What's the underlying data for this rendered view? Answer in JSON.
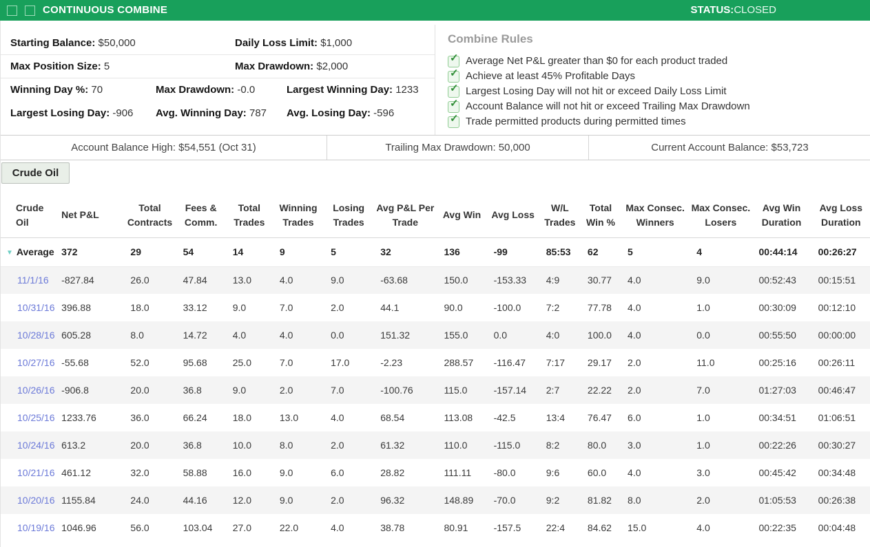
{
  "header": {
    "title": "CONTINUOUS COMBINE",
    "status_label": "STATUS:",
    "status_value": "CLOSED",
    "accent_green": "#18a05b"
  },
  "stats": {
    "row1": [
      {
        "label": "Starting Balance:",
        "value": "$50,000"
      },
      {
        "label": "Daily Loss Limit:",
        "value": "$1,000"
      }
    ],
    "row2": [
      {
        "label": "Max Position Size:",
        "value": "5"
      },
      {
        "label": "Max Drawdown:",
        "value": "$2,000"
      }
    ],
    "row3": [
      {
        "label": "Winning Day %:",
        "value": "70"
      },
      {
        "label": "Max Drawdown:",
        "value": "-0.0"
      },
      {
        "label": "Largest Winning Day:",
        "value": "1233"
      }
    ],
    "row4": [
      {
        "label": "Largest Losing Day:",
        "value": "-906"
      },
      {
        "label": "Avg. Winning Day:",
        "value": "787"
      },
      {
        "label": "Avg. Losing Day:",
        "value": "-596"
      }
    ]
  },
  "rules": {
    "title": "Combine Rules",
    "check_color": "#2f8d36",
    "items": [
      "Average Net P&L greater than $0 for each product traded",
      "Achieve at least 45% Profitable Days",
      "Largest Losing Day will not hit or exceed Daily Loss Limit",
      "Account Balance will not hit or exceed Trailing Max Drawdown",
      "Trade permitted products during permitted times"
    ]
  },
  "balance_bar": {
    "cells": [
      "Account Balance High: $54,551 (Oct 31)",
      "Trailing Max Drawdown: 50,000",
      "Current Account Balance: $53,723"
    ]
  },
  "tab": {
    "label": "Crude Oil"
  },
  "table": {
    "columns": [
      "Crude Oil",
      "Net P&L",
      "Total Contracts",
      "Fees & Comm.",
      "Total Trades",
      "Winning Trades",
      "Losing Trades",
      "Avg P&L Per Trade",
      "Avg Win",
      "Avg Loss",
      "W/L Trades",
      "Total Win %",
      "Max Consec. Winners",
      "Max Consec. Losers",
      "Avg Win Duration",
      "Avg Loss Duration"
    ],
    "average_row": [
      "Average",
      "372",
      "29",
      "54",
      "14",
      "9",
      "5",
      "32",
      "136",
      "-99",
      "85:53",
      "62",
      "5",
      "4",
      "00:44:14",
      "00:26:27"
    ],
    "rows": [
      [
        "11/1/16",
        "-827.84",
        "26.0",
        "47.84",
        "13.0",
        "4.0",
        "9.0",
        "-63.68",
        "150.0",
        "-153.33",
        "4:9",
        "30.77",
        "4.0",
        "9.0",
        "00:52:43",
        "00:15:51"
      ],
      [
        "10/31/16",
        "396.88",
        "18.0",
        "33.12",
        "9.0",
        "7.0",
        "2.0",
        "44.1",
        "90.0",
        "-100.0",
        "7:2",
        "77.78",
        "4.0",
        "1.0",
        "00:30:09",
        "00:12:10"
      ],
      [
        "10/28/16",
        "605.28",
        "8.0",
        "14.72",
        "4.0",
        "4.0",
        "0.0",
        "151.32",
        "155.0",
        "0.0",
        "4:0",
        "100.0",
        "4.0",
        "0.0",
        "00:55:50",
        "00:00:00"
      ],
      [
        "10/27/16",
        "-55.68",
        "52.0",
        "95.68",
        "25.0",
        "7.0",
        "17.0",
        "-2.23",
        "288.57",
        "-116.47",
        "7:17",
        "29.17",
        "2.0",
        "11.0",
        "00:25:16",
        "00:26:11"
      ],
      [
        "10/26/16",
        "-906.8",
        "20.0",
        "36.8",
        "9.0",
        "2.0",
        "7.0",
        "-100.76",
        "115.0",
        "-157.14",
        "2:7",
        "22.22",
        "2.0",
        "7.0",
        "01:27:03",
        "00:46:47"
      ],
      [
        "10/25/16",
        "1233.76",
        "36.0",
        "66.24",
        "18.0",
        "13.0",
        "4.0",
        "68.54",
        "113.08",
        "-42.5",
        "13:4",
        "76.47",
        "6.0",
        "1.0",
        "00:34:51",
        "01:06:51"
      ],
      [
        "10/24/16",
        "613.2",
        "20.0",
        "36.8",
        "10.0",
        "8.0",
        "2.0",
        "61.32",
        "110.0",
        "-115.0",
        "8:2",
        "80.0",
        "3.0",
        "1.0",
        "00:22:26",
        "00:30:27"
      ],
      [
        "10/21/16",
        "461.12",
        "32.0",
        "58.88",
        "16.0",
        "9.0",
        "6.0",
        "28.82",
        "111.11",
        "-80.0",
        "9:6",
        "60.0",
        "4.0",
        "3.0",
        "00:45:42",
        "00:34:48"
      ],
      [
        "10/20/16",
        "1155.84",
        "24.0",
        "44.16",
        "12.0",
        "9.0",
        "2.0",
        "96.32",
        "148.89",
        "-70.0",
        "9:2",
        "81.82",
        "8.0",
        "2.0",
        "01:05:53",
        "00:26:38"
      ],
      [
        "10/19/16",
        "1046.96",
        "56.0",
        "103.04",
        "27.0",
        "22.0",
        "4.0",
        "38.78",
        "80.91",
        "-157.5",
        "22:4",
        "84.62",
        "15.0",
        "4.0",
        "00:22:35",
        "00:04:48"
      ]
    ]
  }
}
